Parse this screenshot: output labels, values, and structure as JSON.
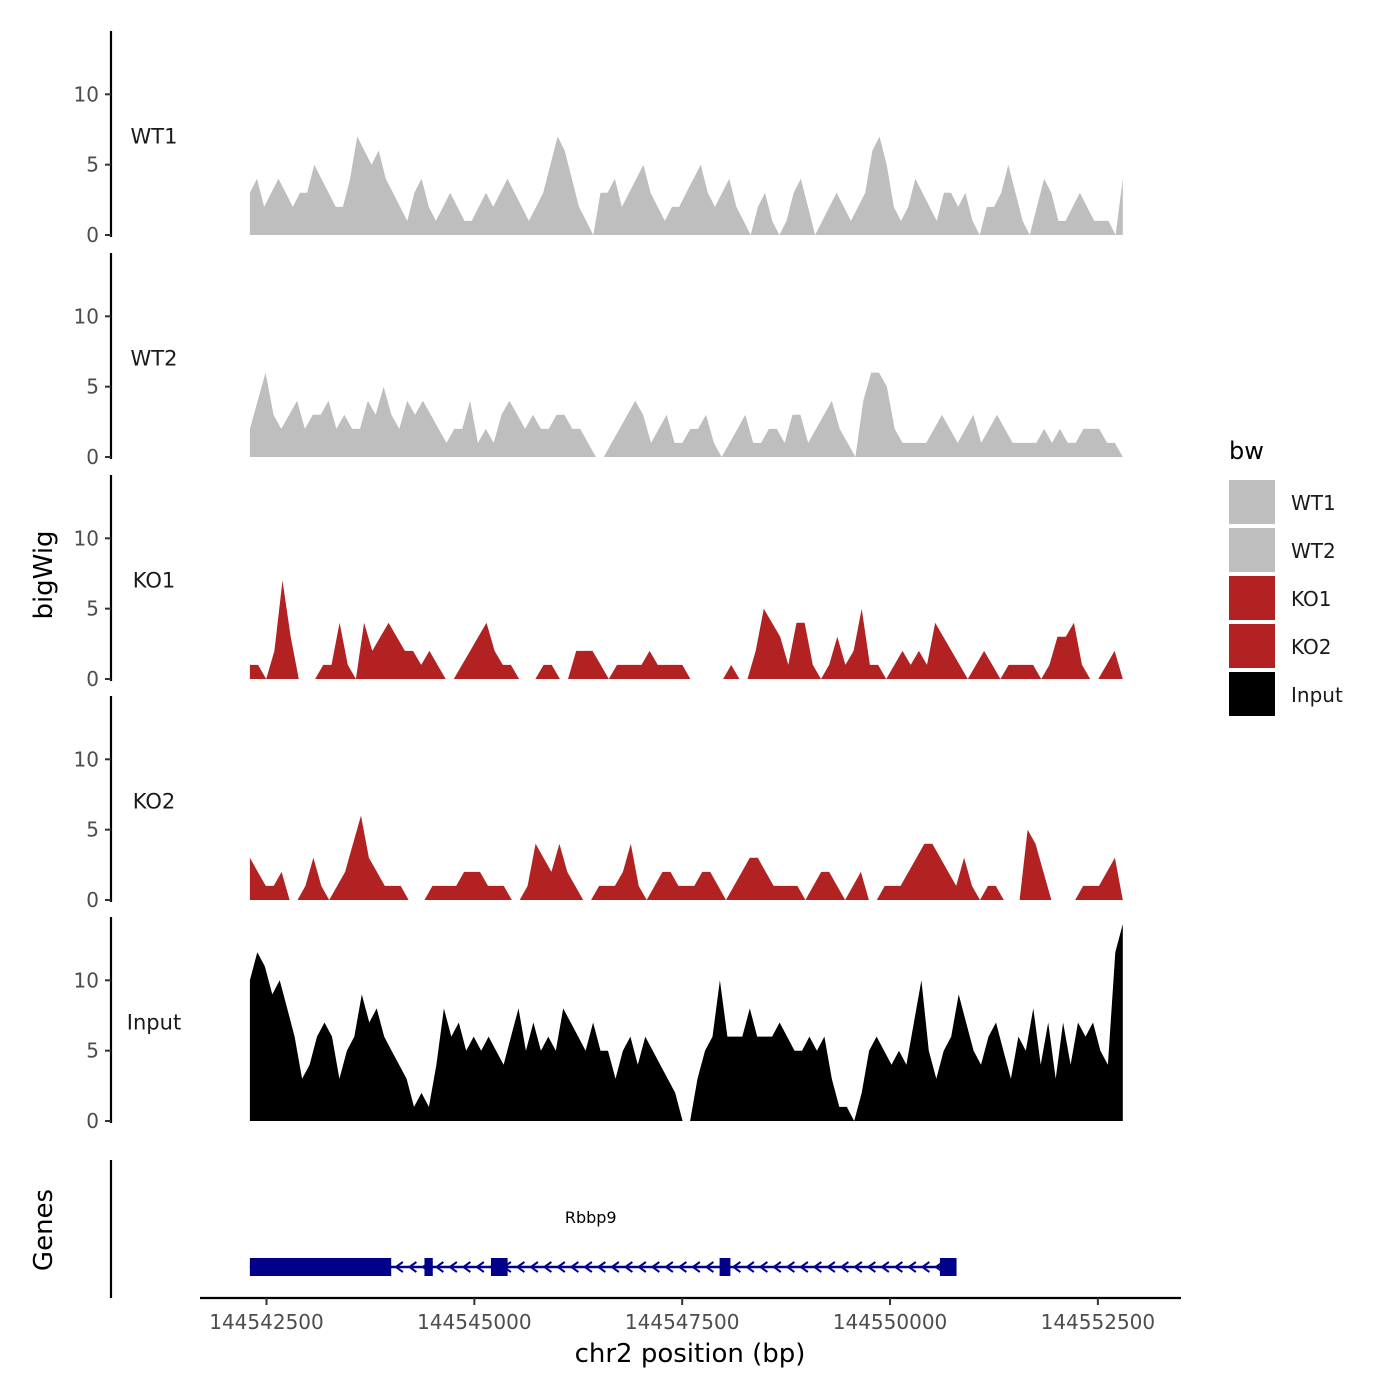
{
  "chart_data": {
    "type": "area",
    "ylabel": "bigWig",
    "xlabel": "chr2 position (bp)",
    "xlim": [
      144541700,
      144553500
    ],
    "ylim": [
      0,
      14.5
    ],
    "y_ticks": [
      0,
      5,
      10
    ],
    "y_tick_labels": [
      "0",
      "5",
      "10"
    ],
    "x_ticks": [
      144542500,
      144545000,
      144547500,
      144550000,
      144552500
    ],
    "x_tick_labels": [
      "144542500",
      "144545000",
      "144547500",
      "144550000",
      "144552500"
    ],
    "tracks": [
      {
        "name": "WT1",
        "color": "#bebebe",
        "x_start": 144542300,
        "x_end": 144552800,
        "values": [
          3,
          4,
          2,
          3,
          4,
          3,
          2,
          3,
          3,
          5,
          4,
          3,
          2,
          2,
          4,
          7,
          6,
          5,
          6,
          4,
          3,
          2,
          1,
          3,
          4,
          2,
          1,
          2,
          3,
          2,
          1,
          1,
          2,
          3,
          2,
          3,
          4,
          3,
          2,
          1,
          2,
          3,
          5,
          7,
          6,
          4,
          2,
          1,
          0,
          3,
          3,
          4,
          2,
          3,
          4,
          5,
          3,
          2,
          1,
          2,
          2,
          3,
          4,
          5,
          3,
          2,
          3,
          4,
          2,
          1,
          0,
          2,
          3,
          1,
          0,
          1,
          3,
          4,
          2,
          0,
          1,
          2,
          3,
          2,
          1,
          2,
          3,
          6,
          7,
          5,
          2,
          1,
          2,
          4,
          3,
          2,
          1,
          3,
          3,
          2,
          3,
          1,
          0,
          2,
          2,
          3,
          5,
          3,
          1,
          0,
          2,
          4,
          3,
          1,
          1,
          2,
          3,
          2,
          1,
          1,
          1,
          0,
          4
        ]
      },
      {
        "name": "WT2",
        "color": "#bebebe",
        "x_start": 144542300,
        "x_end": 144552800,
        "values": [
          2,
          4,
          6,
          3,
          2,
          3,
          4,
          2,
          3,
          3,
          4,
          2,
          3,
          2,
          2,
          4,
          3,
          5,
          3,
          2,
          4,
          3,
          4,
          3,
          2,
          1,
          2,
          2,
          4,
          1,
          2,
          1,
          3,
          4,
          3,
          2,
          3,
          2,
          2,
          3,
          3,
          2,
          2,
          1,
          0,
          0,
          1,
          2,
          3,
          4,
          3,
          1,
          2,
          3,
          1,
          1,
          2,
          2,
          3,
          1,
          0,
          1,
          2,
          3,
          1,
          1,
          2,
          2,
          1,
          3,
          3,
          1,
          2,
          3,
          4,
          2,
          1,
          0,
          4,
          6,
          6,
          5,
          2,
          1,
          1,
          1,
          1,
          2,
          3,
          2,
          1,
          2,
          3,
          1,
          2,
          3,
          2,
          1,
          1,
          1,
          1,
          2,
          1,
          2,
          1,
          1,
          2,
          2,
          2,
          1,
          1,
          0
        ]
      },
      {
        "name": "KO1",
        "color": "#b22222",
        "x_start": 144542300,
        "x_end": 144552800,
        "values": [
          1,
          1,
          0,
          2,
          7,
          3,
          0,
          0,
          0,
          1,
          1,
          4,
          1,
          0,
          4,
          2,
          3,
          4,
          3,
          2,
          2,
          1,
          2,
          1,
          0,
          0,
          1,
          2,
          3,
          4,
          2,
          1,
          1,
          0,
          0,
          0,
          1,
          1,
          0,
          0,
          2,
          2,
          2,
          1,
          0,
          1,
          1,
          1,
          1,
          2,
          1,
          1,
          1,
          1,
          0,
          0,
          0,
          0,
          0,
          1,
          0,
          0,
          2,
          5,
          4,
          3,
          1,
          4,
          4,
          1,
          0,
          1,
          3,
          1,
          2,
          5,
          1,
          1,
          0,
          1,
          2,
          1,
          2,
          1,
          4,
          3,
          2,
          1,
          0,
          1,
          2,
          1,
          0,
          1,
          1,
          1,
          1,
          0,
          1,
          3,
          3,
          4,
          1,
          0,
          0,
          1,
          2,
          0
        ]
      },
      {
        "name": "KO2",
        "color": "#b22222",
        "x_start": 144542300,
        "x_end": 144552800,
        "values": [
          3,
          2,
          1,
          1,
          2,
          0,
          0,
          1,
          3,
          1,
          0,
          1,
          2,
          4,
          6,
          3,
          2,
          1,
          1,
          1,
          0,
          0,
          0,
          1,
          1,
          1,
          1,
          2,
          2,
          2,
          1,
          1,
          1,
          0,
          0,
          1,
          4,
          3,
          2,
          4,
          2,
          1,
          0,
          0,
          1,
          1,
          1,
          2,
          4,
          1,
          0,
          1,
          2,
          2,
          1,
          1,
          1,
          2,
          2,
          1,
          0,
          1,
          2,
          3,
          3,
          2,
          1,
          1,
          1,
          1,
          0,
          1,
          2,
          2,
          1,
          0,
          1,
          2,
          0,
          0,
          1,
          1,
          1,
          2,
          3,
          4,
          4,
          3,
          2,
          1,
          3,
          1,
          0,
          1,
          1,
          0,
          0,
          0,
          5,
          4,
          2,
          0,
          0,
          0,
          0,
          1,
          1,
          1,
          2,
          3,
          0
        ]
      },
      {
        "name": "Input",
        "color": "#000000",
        "x_start": 144542300,
        "x_end": 144552800,
        "values": [
          10,
          12,
          11,
          9,
          10,
          8,
          6,
          3,
          4,
          6,
          7,
          6,
          3,
          5,
          6,
          9,
          7,
          8,
          6,
          5,
          4,
          3,
          1,
          2,
          1,
          4,
          8,
          6,
          7,
          5,
          6,
          5,
          6,
          5,
          4,
          6,
          8,
          5,
          7,
          5,
          6,
          5,
          8,
          7,
          6,
          5,
          7,
          5,
          5,
          3,
          5,
          6,
          4,
          6,
          5,
          4,
          3,
          2,
          0,
          0,
          3,
          5,
          6,
          10,
          6,
          6,
          6,
          8,
          6,
          6,
          6,
          7,
          6,
          5,
          5,
          6,
          5,
          6,
          3,
          1,
          1,
          0,
          2,
          5,
          6,
          5,
          4,
          5,
          4,
          7,
          10,
          5,
          3,
          5,
          6,
          9,
          7,
          5,
          4,
          6,
          7,
          5,
          3,
          6,
          5,
          8,
          4,
          7,
          3,
          7,
          4,
          7,
          6,
          7,
          5,
          4,
          12,
          14
        ]
      }
    ],
    "legend": {
      "title": "bw",
      "position": "right",
      "entries": [
        {
          "label": "WT1",
          "color": "#bebebe"
        },
        {
          "label": "WT2",
          "color": "#bebebe"
        },
        {
          "label": "KO1",
          "color": "#b22222"
        },
        {
          "label": "KO2",
          "color": "#b22222"
        },
        {
          "label": "Input",
          "color": "#000000"
        }
      ]
    },
    "genes": {
      "panel_label": "Genes",
      "gene_name": "Rbbp9",
      "strand": "-",
      "start": 144542300,
      "end": 144550800,
      "color": "#00008b",
      "exons": [
        {
          "start": 144542300,
          "end": 144544000
        },
        {
          "start": 144544400,
          "end": 144544500
        },
        {
          "start": 144545200,
          "end": 144545400
        },
        {
          "start": 144547950,
          "end": 144548080
        },
        {
          "start": 144550600,
          "end": 144550800
        }
      ],
      "label_position": 144546400
    }
  }
}
